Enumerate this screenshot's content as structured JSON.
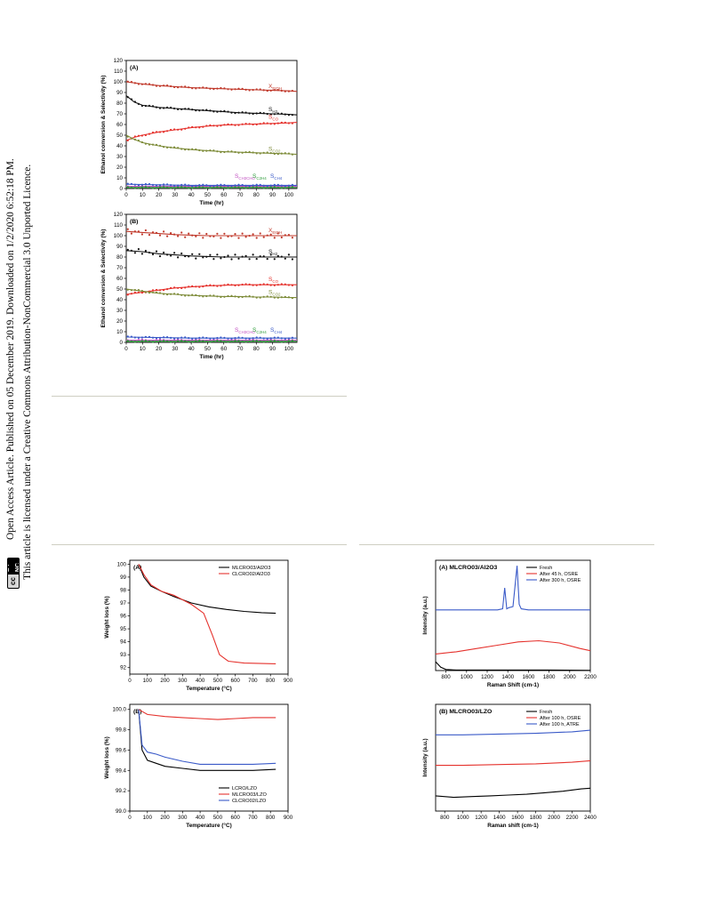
{
  "sidebar": {
    "line1": "Open Access Article. Published on 05 December 2019. Downloaded on 1/2/2020 6:52:18 PM.",
    "line2": "This article is licensed under a Creative Commons Attribution-NonCommercial 3.0 Unported Licence.",
    "badge_cc": "cc",
    "badge_license": "BY-NC"
  },
  "figures": [
    {
      "panel": "(A)",
      "type": "line",
      "xlabel": "Time (hr)",
      "ylabel": "Ethanol conversion & Selectivity (%)",
      "xlim": [
        0,
        105
      ],
      "ylim": [
        0,
        120
      ],
      "xticks": [
        "0",
        "10",
        "20",
        "30",
        "40",
        "50",
        "60",
        "70",
        "80",
        "90",
        "100"
      ],
      "yticks": [
        "0",
        "10",
        "20",
        "30",
        "40",
        "50",
        "60",
        "70",
        "80",
        "90",
        "100",
        "110",
        "120"
      ],
      "series": [
        {
          "name": "X_EtOH",
          "label_main": "X",
          "label_sub": "EtOH",
          "color": "#c0392b",
          "x": [
            0,
            10,
            20,
            30,
            40,
            50,
            60,
            70,
            80,
            90,
            100,
            105
          ],
          "y": [
            100,
            98,
            96.5,
            95.5,
            94.5,
            94,
            93.5,
            93,
            92.5,
            92,
            91.5,
            91
          ]
        },
        {
          "name": "S_H2",
          "label_main": "S",
          "label_sub": "H2",
          "color": "#111111",
          "x": [
            0,
            5,
            10,
            20,
            30,
            40,
            50,
            60,
            70,
            80,
            90,
            100,
            105
          ],
          "y": [
            87,
            81,
            78,
            76,
            75,
            74,
            73,
            72,
            71,
            70.5,
            70,
            69.5,
            69
          ]
        },
        {
          "name": "S_CO",
          "label_main": "S",
          "label_sub": "CO",
          "color": "#e5322d",
          "x": [
            0,
            5,
            10,
            20,
            30,
            40,
            50,
            60,
            70,
            80,
            90,
            100,
            105
          ],
          "y": [
            45,
            48,
            50,
            53,
            55,
            57,
            58.5,
            59.5,
            60,
            60.5,
            61,
            61.5,
            62
          ]
        },
        {
          "name": "S_CO2",
          "label_main": "S",
          "label_sub": "CO2",
          "color": "#7e8c3a",
          "x": [
            0,
            5,
            10,
            20,
            30,
            40,
            50,
            60,
            70,
            80,
            90,
            100,
            105
          ],
          "y": [
            50,
            46,
            43,
            40,
            38,
            36.5,
            35.5,
            34.5,
            34,
            33.5,
            33,
            32.5,
            32
          ]
        },
        {
          "name": "S_CH3CHO",
          "label_main": "S",
          "label_sub": "CH3CHO",
          "color": "#c04fc0",
          "x": [
            0,
            20,
            40,
            60,
            80,
            100,
            105
          ],
          "y": [
            2,
            2,
            2,
            2,
            2,
            2,
            2
          ]
        },
        {
          "name": "S_C2H4",
          "label_main": "S",
          "label_sub": "C2H4",
          "color": "#2e9c3a",
          "x": [
            0,
            20,
            40,
            60,
            80,
            100,
            105
          ],
          "y": [
            1,
            1,
            1,
            1,
            1,
            1,
            1
          ]
        },
        {
          "name": "S_CH4",
          "label_main": "S",
          "label_sub": "CH4",
          "color": "#3a5ac8",
          "x": [
            0,
            20,
            40,
            60,
            80,
            100,
            105
          ],
          "y": [
            4,
            3.5,
            3,
            3,
            3,
            3,
            3
          ]
        }
      ]
    },
    {
      "panel": "(B)",
      "type": "line",
      "xlabel": "Time (hr)",
      "ylabel": "Ethanol conversion & Selectivity (%)",
      "xlim": [
        0,
        105
      ],
      "ylim": [
        0,
        120
      ],
      "xticks": [
        "0",
        "10",
        "20",
        "30",
        "40",
        "50",
        "60",
        "70",
        "80",
        "90",
        "100"
      ],
      "yticks": [
        "0",
        "10",
        "20",
        "30",
        "40",
        "50",
        "60",
        "70",
        "80",
        "90",
        "100",
        "110",
        "120"
      ],
      "series": [
        {
          "name": "X_EtOH",
          "label_main": "X",
          "label_sub": "EtOH",
          "color": "#c0392b",
          "x": [
            0,
            10,
            20,
            30,
            40,
            50,
            60,
            70,
            80,
            90,
            100,
            105
          ],
          "y": [
            104,
            103,
            102,
            101,
            100.5,
            100,
            100,
            100,
            100,
            100,
            100,
            100
          ]
        },
        {
          "name": "S_H2",
          "label_main": "S",
          "label_sub": "H2",
          "color": "#111111",
          "x": [
            0,
            10,
            20,
            30,
            40,
            50,
            60,
            70,
            80,
            90,
            100,
            105
          ],
          "y": [
            86,
            85,
            83,
            82,
            81,
            80.5,
            80,
            80,
            80,
            80,
            80,
            80
          ]
        },
        {
          "name": "S_CO",
          "label_main": "S",
          "label_sub": "CO",
          "color": "#e5322d",
          "x": [
            0,
            10,
            20,
            30,
            40,
            50,
            60,
            70,
            80,
            90,
            100,
            105
          ],
          "y": [
            45,
            47,
            49,
            51,
            52,
            53,
            53.5,
            54,
            54,
            54,
            54,
            54
          ]
        },
        {
          "name": "S_CO2",
          "label_main": "S",
          "label_sub": "CO2",
          "color": "#7e8c3a",
          "x": [
            0,
            10,
            20,
            30,
            40,
            50,
            60,
            70,
            80,
            90,
            100,
            105
          ],
          "y": [
            50,
            48,
            46,
            45,
            44,
            43.5,
            43,
            43,
            42.5,
            42.5,
            42,
            42
          ]
        },
        {
          "name": "S_CH3CHO",
          "label_main": "S",
          "label_sub": "CH3CHO",
          "color": "#c04fc0",
          "x": [
            0,
            20,
            40,
            60,
            80,
            100,
            105
          ],
          "y": [
            2,
            2,
            2,
            2,
            2,
            2,
            2
          ]
        },
        {
          "name": "S_C2H4",
          "label_main": "S",
          "label_sub": "C2H4",
          "color": "#2e9c3a",
          "x": [
            0,
            20,
            40,
            60,
            80,
            100,
            105
          ],
          "y": [
            1,
            1,
            1,
            1,
            1,
            1,
            1
          ]
        },
        {
          "name": "S_CH4",
          "label_main": "S",
          "label_sub": "CH4",
          "color": "#3a5ac8",
          "x": [
            0,
            20,
            40,
            60,
            80,
            100,
            105
          ],
          "y": [
            5,
            4.5,
            4,
            4,
            4,
            4,
            4
          ]
        }
      ]
    },
    {
      "panel": "(A)",
      "type": "line",
      "xlabel": "Temperature (°C)",
      "ylabel": "Weight loss (%)",
      "xlim": [
        0,
        900
      ],
      "ylim": [
        91.5,
        100.3
      ],
      "xticks": [
        "0",
        "100",
        "200",
        "300",
        "400",
        "500",
        "600",
        "700",
        "800",
        "900"
      ],
      "yticks": [
        "92",
        "93",
        "94",
        "95",
        "96",
        "97",
        "98",
        "99",
        "100"
      ],
      "legend": [
        "MLCRO03/Al2O3",
        "CLCRO02/Al2O3"
      ],
      "series": [
        {
          "name": "MLCRO03/Al2O3",
          "color": "#000000",
          "x": [
            50,
            80,
            120,
            180,
            250,
            350,
            450,
            550,
            650,
            750,
            830
          ],
          "y": [
            100,
            99,
            98.3,
            97.9,
            97.5,
            97,
            96.7,
            96.5,
            96.35,
            96.25,
            96.2
          ]
        },
        {
          "name": "CLCRO02/Al2O3",
          "color": "#e5322d",
          "x": [
            50,
            80,
            120,
            180,
            250,
            350,
            420,
            470,
            510,
            560,
            650,
            830
          ],
          "y": [
            100,
            99.2,
            98.4,
            97.9,
            97.6,
            96.9,
            96.2,
            94.5,
            93,
            92.5,
            92.35,
            92.3
          ]
        }
      ]
    },
    {
      "panel": "(B)",
      "type": "line",
      "xlabel": "Temperature (°C)",
      "ylabel": "Weight loss (%)",
      "xlim": [
        0,
        900
      ],
      "ylim": [
        99.0,
        100.05
      ],
      "xticks": [
        "0",
        "100",
        "200",
        "300",
        "400",
        "500",
        "600",
        "700",
        "800",
        "900"
      ],
      "yticks": [
        "99.0",
        "99.2",
        "99.4",
        "99.6",
        "99.8",
        "100.0"
      ],
      "legend": [
        "LCRO/LZO",
        "MLCRO03/LZO",
        "CLCRO02/LZO"
      ],
      "series": [
        {
          "name": "LCRO/LZO",
          "color": "#000000",
          "x": [
            50,
            70,
            100,
            150,
            200,
            300,
            400,
            500,
            600,
            700,
            830
          ],
          "y": [
            100,
            99.6,
            99.5,
            99.47,
            99.44,
            99.42,
            99.4,
            99.4,
            99.4,
            99.4,
            99.41
          ]
        },
        {
          "name": "MLCRO03/LZO",
          "color": "#e5322d",
          "x": [
            50,
            100,
            200,
            300,
            400,
            500,
            600,
            700,
            830
          ],
          "y": [
            100,
            99.95,
            99.93,
            99.92,
            99.91,
            99.9,
            99.91,
            99.92,
            99.92
          ]
        },
        {
          "name": "CLCRO02/LZO",
          "color": "#3a5ac8",
          "x": [
            50,
            70,
            100,
            150,
            200,
            300,
            400,
            500,
            600,
            700,
            830
          ],
          "y": [
            100,
            99.65,
            99.58,
            99.56,
            99.53,
            99.49,
            99.46,
            99.46,
            99.46,
            99.46,
            99.47
          ]
        }
      ]
    },
    {
      "panel": "(A) MLCRO03/Al2O3",
      "type": "line",
      "xlabel": "Raman Shift (cm-1)",
      "ylabel": "Intensity (a.u.)",
      "xlim": [
        700,
        2200
      ],
      "xticks": [
        "800",
        "1000",
        "1200",
        "1400",
        "1600",
        "1800",
        "2000",
        "2200"
      ],
      "legend": [
        "Fresh",
        "After 45 h, OSRE",
        "After 300 h, OSRE"
      ],
      "series": [
        {
          "name": "Fresh",
          "color": "#000000",
          "x": [
            700,
            750,
            800,
            900,
            1000,
            1400,
            1800,
            2200
          ],
          "y": [
            8,
            3,
            1,
            0.5,
            0.5,
            0.5,
            0.5,
            0.2
          ]
        },
        {
          "name": "After 45 h, OSRE",
          "color": "#e5322d",
          "x": [
            700,
            900,
            1100,
            1300,
            1500,
            1700,
            1900,
            2100,
            2200
          ],
          "y": [
            15,
            17,
            20,
            23,
            26,
            27,
            25,
            20,
            18
          ]
        },
        {
          "name": "After 300 h, OSRE",
          "color": "#3a5ac8",
          "x": [
            700,
            1300,
            1350,
            1370,
            1390,
            1410,
            1450,
            1490,
            1510,
            1530,
            1600,
            2200
          ],
          "y": [
            55,
            55,
            56,
            75,
            56,
            57,
            58,
            95,
            60,
            56,
            55,
            55
          ]
        }
      ]
    },
    {
      "panel": "(B) MLCRO03/LZO",
      "type": "line",
      "xlabel": "Raman shift (cm-1)",
      "ylabel": "Intensity (a.u.)",
      "xlim": [
        700,
        2400
      ],
      "xticks": [
        "800",
        "1000",
        "1200",
        "1400",
        "1600",
        "1800",
        "2000",
        "2200",
        "2400"
      ],
      "legend": [
        "Fresh",
        "After 100 h, OSRE",
        "After 100 h, ATRE"
      ],
      "series": [
        {
          "name": "Fresh",
          "color": "#000000",
          "x": [
            700,
            900,
            1100,
            1300,
            1500,
            1700,
            1900,
            2100,
            2300,
            2400
          ],
          "y": [
            10,
            9,
            9.5,
            10,
            10.5,
            11,
            12,
            13,
            14.5,
            15
          ]
        },
        {
          "name": "After 100 h, OSRE",
          "color": "#e5322d",
          "x": [
            700,
            1000,
            1400,
            1800,
            2200,
            2400
          ],
          "y": [
            30,
            30,
            30.5,
            31,
            32,
            33
          ]
        },
        {
          "name": "After 100 h, ATRE",
          "color": "#3a5ac8",
          "x": [
            700,
            1000,
            1400,
            1800,
            2200,
            2400
          ],
          "y": [
            50,
            50,
            50.5,
            51,
            52,
            53
          ]
        }
      ]
    }
  ]
}
